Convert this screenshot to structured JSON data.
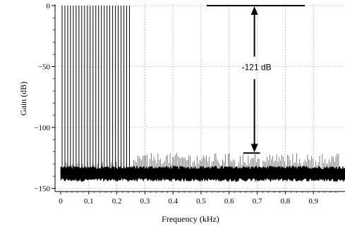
{
  "chart_data": {
    "type": "line",
    "title": "",
    "xlabel": "Frequency (kHz)",
    "ylabel": "Gain (dB)",
    "xlim": [
      -0.01,
      0.99
    ],
    "ylim": [
      -152,
      1
    ],
    "x_ticks": [
      0,
      0.1,
      0.2,
      0.3,
      0.4,
      0.5,
      0.6,
      0.7,
      0.8,
      0.9
    ],
    "x_tick_labels": [
      "0",
      "0.1",
      "0.2",
      "0.3",
      "0.4",
      "0.5",
      "0.6",
      "0.7",
      "0.8",
      "0.9"
    ],
    "y_ticks": [
      0,
      -50,
      -100,
      -150
    ],
    "y_tick_labels": [
      "0",
      "−50",
      "−100",
      "−150"
    ],
    "grid": true,
    "series": [
      {
        "color": "#000000",
        "passband_tone_frequencies_khz": [
          0.005,
          0.015,
          0.025,
          0.035,
          0.045,
          0.055,
          0.065,
          0.075,
          0.085,
          0.095,
          0.105,
          0.115,
          0.125,
          0.135,
          0.145,
          0.155,
          0.165,
          0.175,
          0.185,
          0.195,
          0.205,
          0.215,
          0.225,
          0.235,
          0.245
        ],
        "passband_tone_level_db": 0,
        "noise_floor_db": -138,
        "noise_floor_band_db": [
          -143,
          -133
        ],
        "stopband_spur_peak_db_range": [
          -130,
          -121
        ],
        "x_end_khz": 0.99
      }
    ],
    "annotations": [
      {
        "text": "-121 dB",
        "x": 0.69,
        "y": -50
      }
    ],
    "reference_lines": [
      {
        "label": "",
        "y": 0,
        "x_from": 0.52,
        "x_to": 0.87
      },
      {
        "label": "",
        "y": -121,
        "x_from": 0.65,
        "x_to": 0.71
      }
    ],
    "arrow": {
      "x": 0.69,
      "y_from": 0,
      "y_to": -121
    }
  }
}
